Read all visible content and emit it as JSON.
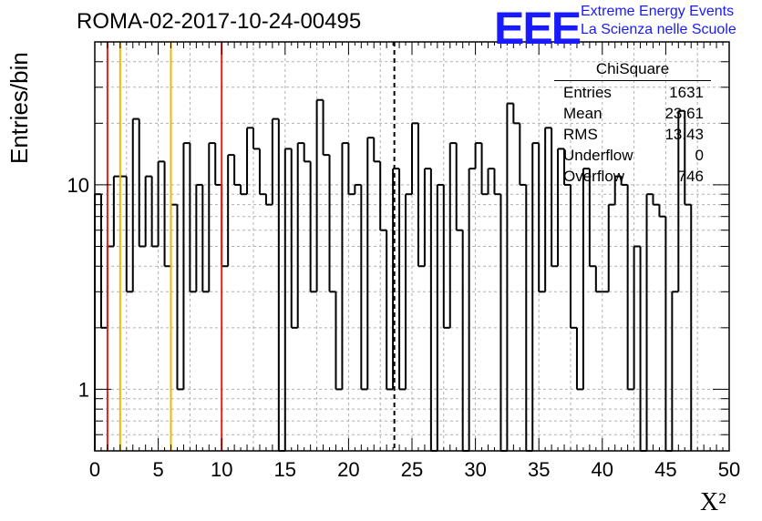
{
  "title": "ROMA-02-2017-10-24-00495",
  "logo": {
    "mark": "EEE",
    "line1": "Extreme Energy Events",
    "line2": "La Scienza nelle Scuole",
    "color": "#1a1aff"
  },
  "stats_box": {
    "name": "ChiSquare",
    "entries_label": "Entries",
    "entries": "1631",
    "mean_label": "Mean",
    "mean": "23.61",
    "rms_label": "RMS",
    "rms": "13.43",
    "underflow_label": "Underflow",
    "underflow": "0",
    "overflow_label": "Overflow",
    "overflow": "746"
  },
  "chart_data": {
    "type": "bar",
    "style": "step-histogram",
    "title": "ROMA-02-2017-10-24-00495",
    "xlabel": "X²",
    "ylabel": "Entries/bin",
    "xlim": [
      0,
      50
    ],
    "ylim": [
      0.5,
      50
    ],
    "yscale": "log",
    "grid": true,
    "bin_width": 0.5,
    "x_ticks": [
      0,
      5,
      10,
      15,
      20,
      25,
      30,
      35,
      40,
      45,
      50
    ],
    "y_ticks": [
      1,
      10
    ],
    "y_tick_labels": [
      "1",
      "10"
    ],
    "values": [
      9,
      2,
      5,
      11,
      11,
      3,
      21,
      5,
      11,
      5,
      13,
      4,
      8,
      1,
      16,
      3,
      10,
      3,
      16,
      10,
      4,
      14,
      10,
      9,
      19,
      15,
      9,
      8,
      21,
      0,
      15,
      2,
      16,
      13,
      3,
      26,
      14,
      3,
      1,
      16,
      9,
      10,
      1,
      17,
      13,
      6,
      1,
      12,
      1,
      9,
      20,
      4,
      12,
      0,
      10,
      2,
      16,
      6,
      0,
      12,
      16,
      9,
      12,
      9,
      0,
      25,
      20,
      10,
      0,
      16,
      3,
      19,
      4,
      15,
      10,
      2,
      1,
      12,
      4,
      3,
      3,
      8,
      11,
      10,
      1,
      5,
      0,
      9,
      8,
      7,
      0,
      3,
      23,
      8
    ],
    "vertical_lines": [
      {
        "x": 1,
        "color": "#e8201a",
        "style": "solid"
      },
      {
        "x": 2,
        "color": "#f0b800",
        "style": "solid"
      },
      {
        "x": 6,
        "color": "#f0b800",
        "style": "solid"
      },
      {
        "x": 10,
        "color": "#e8201a",
        "style": "solid"
      },
      {
        "x": 23.61,
        "color": "#000000",
        "style": "dashed"
      }
    ]
  }
}
